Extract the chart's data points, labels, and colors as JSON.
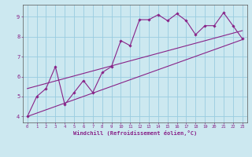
{
  "xlabel": "Windchill (Refroidissement éolien,°C)",
  "bg_color": "#cce8f0",
  "grid_color": "#99cce0",
  "line_color": "#882288",
  "axis_color": "#882288",
  "xlim": [
    -0.5,
    23.5
  ],
  "ylim": [
    3.7,
    9.6
  ],
  "x_ticks": [
    0,
    1,
    2,
    3,
    4,
    5,
    6,
    7,
    8,
    9,
    10,
    11,
    12,
    13,
    14,
    15,
    16,
    17,
    18,
    19,
    20,
    21,
    22,
    23
  ],
  "y_ticks": [
    4,
    5,
    6,
    7,
    8,
    9
  ],
  "main_x": [
    0,
    1,
    2,
    3,
    4,
    5,
    6,
    7,
    8,
    9,
    10,
    11,
    12,
    13,
    14,
    15,
    16,
    17,
    18,
    19,
    20,
    21,
    22,
    23
  ],
  "main_y": [
    4.0,
    5.0,
    5.4,
    6.5,
    4.6,
    5.2,
    5.8,
    5.2,
    6.2,
    6.5,
    7.8,
    7.55,
    8.85,
    8.85,
    9.1,
    8.8,
    9.15,
    8.8,
    8.1,
    8.55,
    8.55,
    9.2,
    8.55,
    7.9
  ],
  "low_line_x": [
    0,
    23
  ],
  "low_line_y": [
    4.0,
    7.85
  ],
  "high_line_x": [
    0,
    23
  ],
  "high_line_y": [
    5.4,
    8.3
  ]
}
